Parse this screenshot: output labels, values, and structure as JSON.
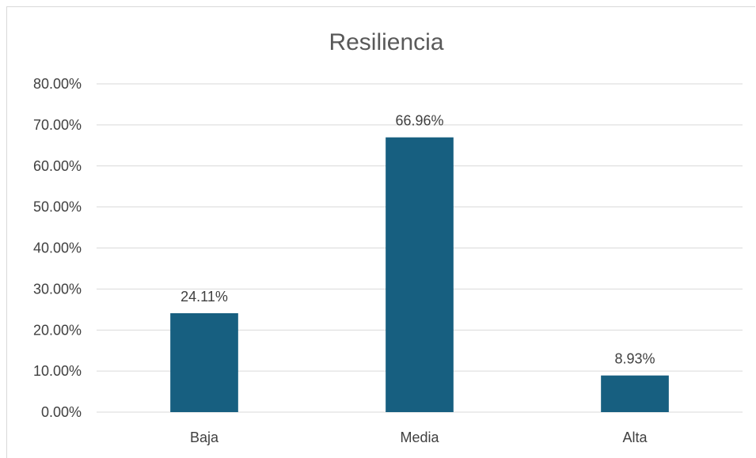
{
  "chart_data": {
    "type": "bar",
    "title": "Resiliencia",
    "categories": [
      "Baja",
      "Media",
      "Alta"
    ],
    "values": [
      24.11,
      66.96,
      8.93
    ],
    "data_labels": [
      "24.11%",
      "66.96%",
      "8.93%"
    ],
    "ylim": [
      0,
      80
    ],
    "yticks": [
      0,
      10,
      20,
      30,
      40,
      50,
      60,
      70,
      80
    ],
    "ytick_labels": [
      "0.00%",
      "10.00%",
      "20.00%",
      "30.00%",
      "40.00%",
      "50.00%",
      "60.00%",
      "70.00%",
      "80.00%"
    ],
    "xlabel": "",
    "ylabel": "",
    "grid": true,
    "legend": "none",
    "bar_color": "#175f80"
  }
}
